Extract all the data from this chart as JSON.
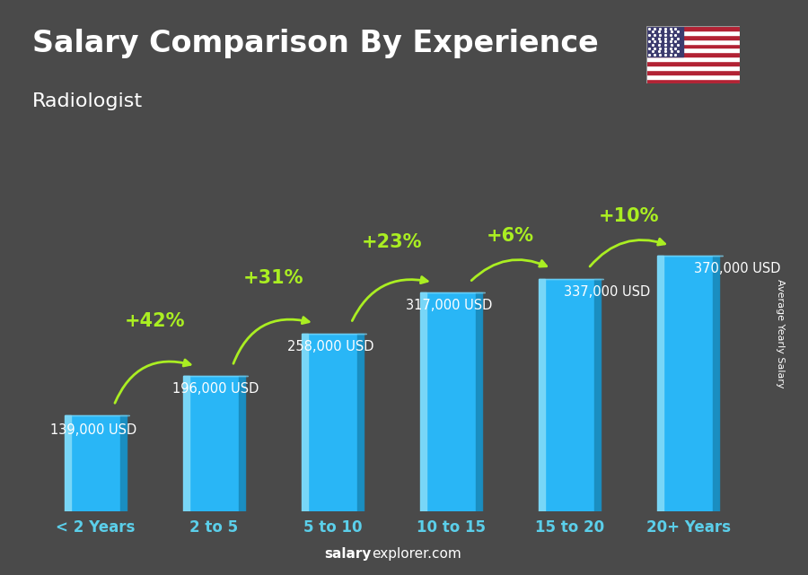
{
  "title": "Salary Comparison By Experience",
  "subtitle": "Radiologist",
  "categories": [
    "< 2 Years",
    "2 to 5",
    "5 to 10",
    "10 to 15",
    "15 to 20",
    "20+ Years"
  ],
  "values": [
    139000,
    196000,
    258000,
    317000,
    337000,
    370000
  ],
  "labels": [
    "139,000 USD",
    "196,000 USD",
    "258,000 USD",
    "317,000 USD",
    "337,000 USD",
    "370,000 USD"
  ],
  "pct_changes": [
    "+42%",
    "+31%",
    "+23%",
    "+6%",
    "+10%"
  ],
  "bar_color_main": "#29b6f6",
  "bar_color_light": "#7dd8f8",
  "bar_color_dark": "#1a8cbf",
  "bg_color": "#4a4a4a",
  "text_color_white": "#ffffff",
  "text_color_cyan": "#5bcfea",
  "text_color_green": "#aaee22",
  "ylabel": "Average Yearly Salary",
  "footer_bold": "salary",
  "footer_normal": "explorer.com",
  "title_fontsize": 24,
  "subtitle_fontsize": 16,
  "bar_label_fontsize": 10.5,
  "pct_fontsize": 15,
  "cat_fontsize": 12
}
